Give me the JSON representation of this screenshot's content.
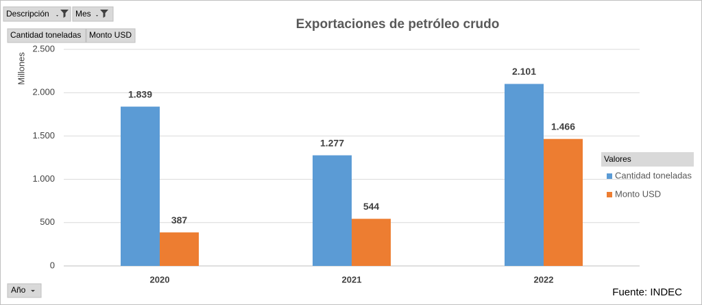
{
  "chart_data": {
    "type": "bar",
    "title": "Exportaciones de petróleo crudo",
    "y_label": "Millones",
    "filter_fields": [
      "Descripción",
      "Mes"
    ],
    "axis_field": "Año",
    "legend_title": "Valores",
    "source": "Fuente: INDEC",
    "categories": [
      "2020",
      "2021",
      "2022"
    ],
    "series": [
      {
        "name": "Cantidad toneladas",
        "color": "#5b9bd5",
        "values": [
          1839,
          1277,
          2101
        ],
        "value_labels": [
          "1.839",
          "1.277",
          "2.101"
        ]
      },
      {
        "name": "Monto USD",
        "color": "#ed7d31",
        "values": [
          387,
          544,
          1466
        ],
        "value_labels": [
          "387",
          "544",
          "1.466"
        ]
      }
    ],
    "ylim": [
      0,
      2500
    ],
    "yticks": [
      0,
      500,
      {
        "value": 1000,
        "label": "1.000"
      },
      {
        "value": 1500,
        "label": "1.500"
      },
      {
        "value": 2000,
        "label": "2.000"
      },
      {
        "value": 2500,
        "label": "2.500"
      }
    ],
    "grid": true,
    "legend": "right"
  }
}
